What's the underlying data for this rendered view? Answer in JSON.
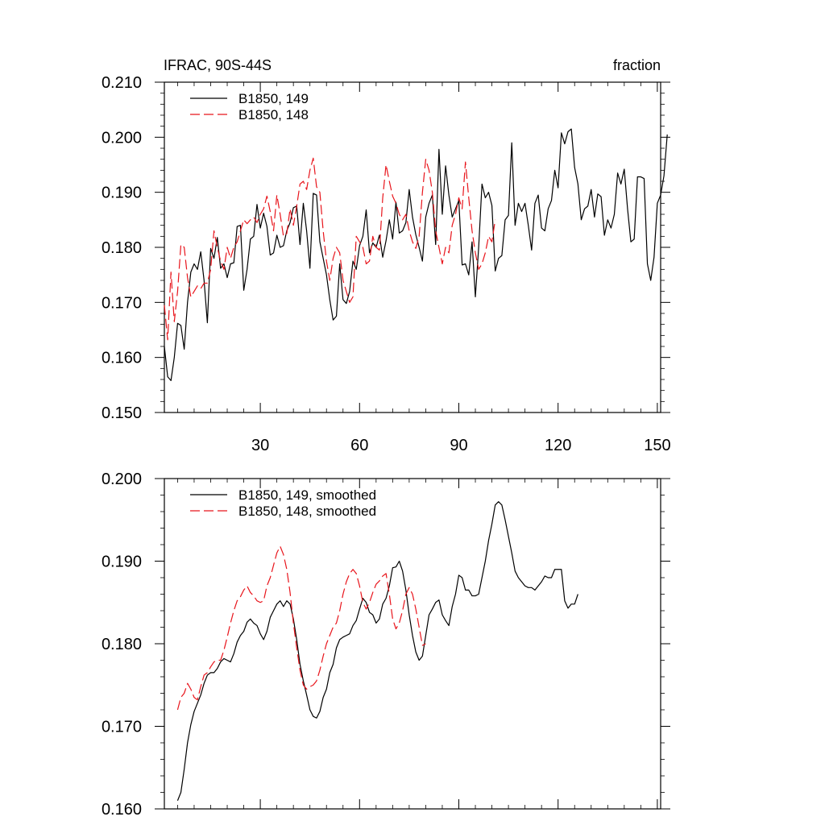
{
  "chart_data": [
    {
      "type": "line",
      "title": "IFRAC, 90S-44S",
      "units": "fraction",
      "xlabel": "",
      "ylabel": "",
      "xlim": [
        1,
        151
      ],
      "ylim": [
        0.15,
        0.21
      ],
      "xticks": [
        30,
        60,
        90,
        120,
        150
      ],
      "xtick_labels": [
        "30",
        "60",
        "90",
        "120",
        "150"
      ],
      "yticks": [
        0.15,
        0.16,
        0.17,
        0.18,
        0.19,
        0.2,
        0.21
      ],
      "ytick_labels": [
        "0.150",
        "0.160",
        "0.170",
        "0.180",
        "0.190",
        "0.200",
        "0.210"
      ],
      "grid": false,
      "legend_position": "top-left",
      "series": [
        {
          "name": "B1850, 149",
          "color": "#000000",
          "dash": "solid",
          "x_start": 1,
          "values": [
            0.162,
            0.1565,
            0.1558,
            0.16,
            0.1662,
            0.1658,
            0.1615,
            0.17,
            0.1755,
            0.177,
            0.176,
            0.1792,
            0.174,
            0.1663,
            0.1798,
            0.178,
            0.1818,
            0.1762,
            0.177,
            0.1745,
            0.177,
            0.1772,
            0.1838,
            0.184,
            0.1722,
            0.176,
            0.1815,
            0.182,
            0.1878,
            0.1835,
            0.1862,
            0.1838,
            0.1786,
            0.179,
            0.1822,
            0.18,
            0.1803,
            0.183,
            0.1845,
            0.1872,
            0.1875,
            0.1805,
            0.188,
            0.183,
            0.1762,
            0.1898,
            0.1895,
            0.181,
            0.178,
            0.175,
            0.1705,
            0.1668,
            0.1675,
            0.177,
            0.1705,
            0.1698,
            0.172,
            0.1775,
            0.176,
            0.1803,
            0.182,
            0.1868,
            0.179,
            0.1808,
            0.18,
            0.1822,
            0.1782,
            0.1812,
            0.185,
            0.1815,
            0.1882,
            0.1826,
            0.183,
            0.1845,
            0.1905,
            0.1855,
            0.1823,
            0.18,
            0.1775,
            0.1855,
            0.188,
            0.1895,
            0.1805,
            0.1978,
            0.186,
            0.1948,
            0.1895,
            0.1855,
            0.187,
            0.1885,
            0.1768,
            0.177,
            0.175,
            0.181,
            0.171,
            0.18,
            0.1915,
            0.189,
            0.19,
            0.1876,
            0.1757,
            0.178,
            0.1785,
            0.185,
            0.1858,
            0.199,
            0.184,
            0.188,
            0.1865,
            0.188,
            0.184,
            0.1795,
            0.188,
            0.1895,
            0.1835,
            0.183,
            0.187,
            0.1885,
            0.194,
            0.1908,
            0.2008,
            0.1988,
            0.201,
            0.2015,
            0.1945,
            0.1915,
            0.185,
            0.187,
            0.1875,
            0.1905,
            0.1855,
            0.1897,
            0.1892,
            0.1822,
            0.185,
            0.1835,
            0.186,
            0.1935,
            0.1915,
            0.1942,
            0.187,
            0.181,
            0.1815,
            0.1928,
            0.1928,
            0.1925,
            0.177,
            0.174,
            0.1782,
            0.188,
            0.1895,
            0.193,
            0.2005
          ]
        },
        {
          "name": "B1850, 148",
          "color": "#e8141b",
          "dash": "dashed",
          "x_start": 1,
          "values": [
            0.1695,
            0.1632,
            0.1755,
            0.1665,
            0.172,
            0.1805,
            0.18,
            0.1745,
            0.171,
            0.172,
            0.173,
            0.1725,
            0.1735,
            0.1735,
            0.176,
            0.183,
            0.18,
            0.1775,
            0.176,
            0.18,
            0.178,
            0.18,
            0.181,
            0.183,
            0.185,
            0.1843,
            0.185,
            0.1855,
            0.1845,
            0.186,
            0.187,
            0.1893,
            0.1865,
            0.183,
            0.1895,
            0.186,
            0.182,
            0.1825,
            0.187,
            0.184,
            0.1875,
            0.1915,
            0.192,
            0.1905,
            0.194,
            0.1962,
            0.191,
            0.19,
            0.183,
            0.1775,
            0.174,
            0.178,
            0.18,
            0.179,
            0.174,
            0.172,
            0.17,
            0.171,
            0.182,
            0.181,
            0.18,
            0.177,
            0.1775,
            0.182,
            0.18,
            0.1795,
            0.189,
            0.195,
            0.192,
            0.1893,
            0.188,
            0.186,
            0.185,
            0.186,
            0.183,
            0.181,
            0.1798,
            0.182,
            0.19,
            0.196,
            0.194,
            0.19,
            0.183,
            0.18,
            0.177,
            0.18,
            0.179,
            0.184,
            0.186,
            0.189,
            0.187,
            0.1955,
            0.189,
            0.183,
            0.179,
            0.176,
            0.177,
            0.179,
            0.182,
            0.181,
            0.185
          ]
        }
      ]
    },
    {
      "type": "line",
      "title": "",
      "xlabel": "",
      "ylabel": "",
      "xlim": [
        1,
        151
      ],
      "ylim": [
        0.16,
        0.2
      ],
      "xticks": [
        30,
        60,
        90,
        120,
        150
      ],
      "yticks": [
        0.16,
        0.17,
        0.18,
        0.19,
        0.2
      ],
      "ytick_labels": [
        "0.160",
        "0.170",
        "0.180",
        "0.190",
        "0.200"
      ],
      "grid": false,
      "legend_position": "top-left",
      "series": [
        {
          "name": "B1850, 149, smoothed",
          "color": "#000000",
          "dash": "solid",
          "x_start": 5,
          "values": [
            0.161,
            0.162,
            0.1648,
            0.168,
            0.1702,
            0.1718,
            0.1728,
            0.1738,
            0.1752,
            0.1762,
            0.1765,
            0.1765,
            0.177,
            0.1778,
            0.1782,
            0.178,
            0.1778,
            0.1788,
            0.1802,
            0.181,
            0.1815,
            0.1826,
            0.183,
            0.1825,
            0.1822,
            0.1812,
            0.1805,
            0.1815,
            0.1832,
            0.184,
            0.1848,
            0.1852,
            0.1845,
            0.1852,
            0.1848,
            0.183,
            0.1805,
            0.1775,
            0.1755,
            0.1738,
            0.172,
            0.1712,
            0.171,
            0.1718,
            0.1735,
            0.1745,
            0.1765,
            0.1775,
            0.1795,
            0.1805,
            0.1808,
            0.181,
            0.1812,
            0.1822,
            0.1828,
            0.1842,
            0.1855,
            0.185,
            0.1838,
            0.1835,
            0.1825,
            0.183,
            0.1848,
            0.1855,
            0.187,
            0.1892,
            0.1893,
            0.19,
            0.1888,
            0.1865,
            0.1835,
            0.181,
            0.179,
            0.178,
            0.1785,
            0.181,
            0.1835,
            0.1842,
            0.185,
            0.1853,
            0.1835,
            0.1828,
            0.1822,
            0.1845,
            0.186,
            0.1883,
            0.188,
            0.1865,
            0.1865,
            0.1858,
            0.1858,
            0.186,
            0.188,
            0.19,
            0.1925,
            0.1945,
            0.1968,
            0.1972,
            0.1968,
            0.195,
            0.193,
            0.191,
            0.1888,
            0.188,
            0.1875,
            0.187,
            0.1868,
            0.1868,
            0.1865,
            0.187,
            0.1875,
            0.1882,
            0.188,
            0.188,
            0.189,
            0.189,
            0.189,
            0.1852,
            0.1843,
            0.1848,
            0.1848,
            0.186
          ]
        },
        {
          "name": "B1850, 148, smoothed",
          "color": "#e8141b",
          "dash": "dashed",
          "x_start": 5,
          "values": [
            0.172,
            0.1735,
            0.174,
            0.1752,
            0.1745,
            0.1735,
            0.1732,
            0.1748,
            0.1762,
            0.1765,
            0.1772,
            0.1778,
            0.178,
            0.178,
            0.1792,
            0.1808,
            0.1825,
            0.184,
            0.1852,
            0.1857,
            0.1865,
            0.187,
            0.1862,
            0.1858,
            0.1852,
            0.185,
            0.1852,
            0.187,
            0.188,
            0.1895,
            0.191,
            0.1918,
            0.1908,
            0.189,
            0.1862,
            0.1825,
            0.1795,
            0.1768,
            0.175,
            0.1745,
            0.1748,
            0.175,
            0.1755,
            0.1768,
            0.1785,
            0.18,
            0.181,
            0.182,
            0.1825,
            0.184,
            0.186,
            0.1875,
            0.1885,
            0.189,
            0.1885,
            0.187,
            0.185,
            0.1842,
            0.185,
            0.1862,
            0.1872,
            0.1876,
            0.1882,
            0.1885,
            0.186,
            0.183,
            0.1818,
            0.1825,
            0.184,
            0.186,
            0.1868,
            0.186,
            0.1842,
            0.182,
            0.1798,
            0.18
          ]
        }
      ]
    }
  ]
}
